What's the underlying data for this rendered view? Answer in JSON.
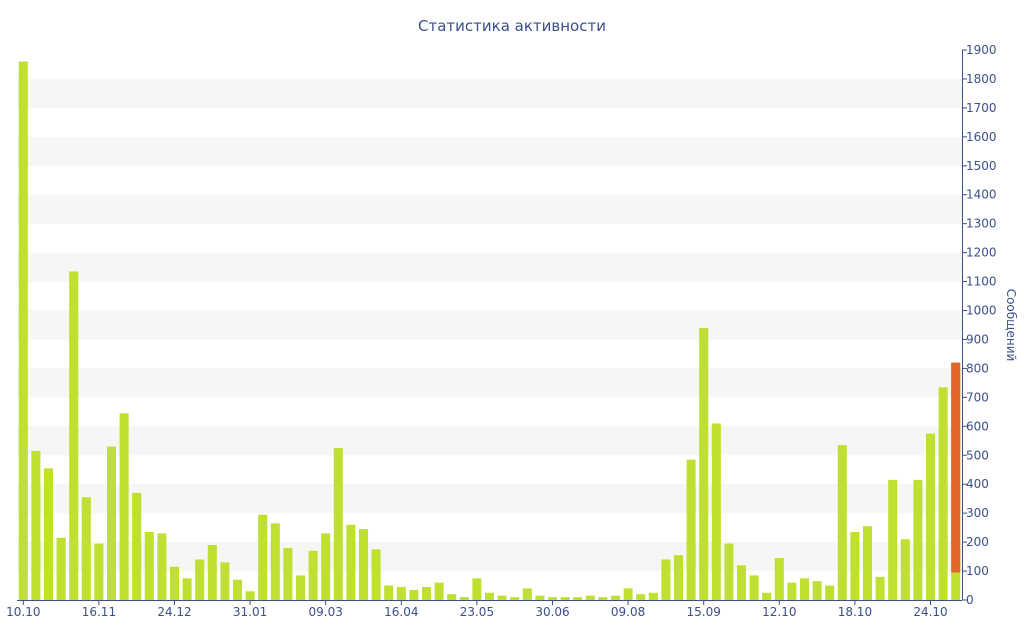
{
  "chart_data": {
    "type": "bar",
    "title": "Статистика активности",
    "ylabel": "Сообщений",
    "xlabel": "",
    "ylim": [
      0,
      1900
    ],
    "y_ticks": [
      0,
      100,
      200,
      300,
      400,
      500,
      600,
      700,
      800,
      900,
      1000,
      1100,
      1200,
      1300,
      1400,
      1500,
      1600,
      1700,
      1800,
      1900
    ],
    "y_axis_position": "right",
    "grid": "alternating horizontal bands",
    "x_tick_labels": [
      {
        "index": 0,
        "label": "10.10"
      },
      {
        "index": 6,
        "label": "16.11"
      },
      {
        "index": 12,
        "label": "24.12"
      },
      {
        "index": 18,
        "label": "31.01"
      },
      {
        "index": 24,
        "label": "09.03"
      },
      {
        "index": 30,
        "label": "16.04"
      },
      {
        "index": 36,
        "label": "23.05"
      },
      {
        "index": 42,
        "label": "30.06"
      },
      {
        "index": 48,
        "label": "09.08"
      },
      {
        "index": 54,
        "label": "15.09"
      },
      {
        "index": 60,
        "label": "12.10"
      },
      {
        "index": 66,
        "label": "18.10"
      },
      {
        "index": 72,
        "label": "24.10"
      }
    ],
    "values": [
      1860,
      515,
      455,
      215,
      1135,
      355,
      195,
      530,
      645,
      370,
      235,
      230,
      115,
      75,
      140,
      190,
      130,
      70,
      30,
      295,
      265,
      180,
      85,
      170,
      230,
      525,
      260,
      245,
      175,
      50,
      45,
      35,
      45,
      60,
      20,
      10,
      75,
      25,
      15,
      10,
      40,
      15,
      10,
      10,
      10,
      15,
      10,
      15,
      40,
      20,
      25,
      140,
      155,
      485,
      940,
      610,
      195,
      120,
      85,
      25,
      145,
      60,
      75,
      65,
      50,
      535,
      235,
      255,
      80,
      415,
      210,
      415,
      575,
      735,
      820
    ],
    "highlight": {
      "index": 74,
      "value": 820,
      "base": 95
    },
    "colors": {
      "bar": "#bfe031",
      "highlight": "#e2652b",
      "band": "#f6f6f6",
      "axis": "#3b4f8a",
      "text": "#3b4f8a"
    }
  }
}
